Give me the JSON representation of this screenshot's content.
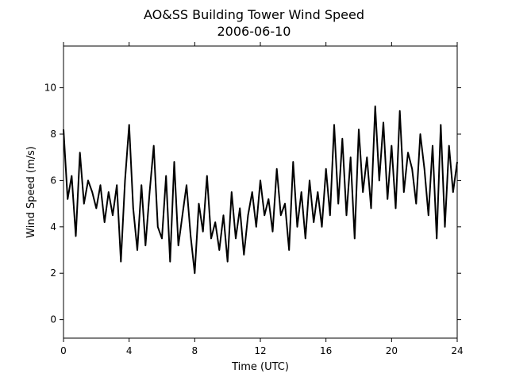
{
  "chart_data": {
    "type": "line",
    "title": "AO&SS Building Tower Wind Speed",
    "subtitle": "2006-06-10",
    "xlabel": "Time (UTC)",
    "ylabel": "Wind Speed (m/s)",
    "xlim": [
      0,
      24
    ],
    "ylim": [
      -0.8,
      11.8
    ],
    "xticks": [
      0,
      4,
      8,
      12,
      16,
      20,
      24
    ],
    "yticks": [
      0,
      2,
      4,
      6,
      8,
      10
    ],
    "grid": false,
    "line_color": "#000000",
    "series": [
      {
        "x": [
          0.0,
          0.25,
          0.5,
          0.75,
          1.0,
          1.25,
          1.5,
          1.75,
          2.0,
          2.25,
          2.5,
          2.75,
          3.0,
          3.25,
          3.5,
          3.75,
          4.0,
          4.25,
          4.5,
          4.75,
          5.0,
          5.25,
          5.5,
          5.75,
          6.0,
          6.25,
          6.5,
          6.75,
          7.0,
          7.25,
          7.5,
          7.75,
          8.0,
          8.25,
          8.5,
          8.75,
          9.0,
          9.25,
          9.5,
          9.75,
          10.0,
          10.25,
          10.5,
          10.75,
          11.0,
          11.25,
          11.5,
          11.75,
          12.0,
          12.25,
          12.5,
          12.75,
          13.0,
          13.25,
          13.5,
          13.75,
          14.0,
          14.25,
          14.5,
          14.75,
          15.0,
          15.25,
          15.5,
          15.75,
          16.0,
          16.25,
          16.5,
          16.75,
          17.0,
          17.25,
          17.5,
          17.75,
          18.0,
          18.25,
          18.5,
          18.75,
          19.0,
          19.25,
          19.5,
          19.75,
          20.0,
          20.25,
          20.5,
          20.75,
          21.0,
          21.25,
          21.5,
          21.75,
          22.0,
          22.25,
          22.5,
          22.75,
          23.0,
          23.25,
          23.5,
          23.75,
          24.0
        ],
        "values": [
          8.2,
          5.2,
          6.2,
          3.6,
          7.2,
          5.0,
          6.0,
          5.5,
          4.8,
          5.8,
          4.2,
          5.5,
          4.5,
          5.8,
          2.5,
          6.0,
          8.4,
          4.8,
          3.0,
          5.8,
          3.2,
          5.5,
          7.5,
          4.0,
          3.5,
          6.2,
          2.5,
          6.8,
          3.2,
          4.5,
          5.8,
          3.6,
          2.0,
          5.0,
          3.8,
          6.2,
          3.5,
          4.2,
          3.0,
          4.5,
          2.5,
          5.5,
          3.5,
          4.8,
          2.8,
          4.5,
          5.5,
          4.0,
          6.0,
          4.5,
          5.2,
          3.8,
          6.5,
          4.5,
          5.0,
          3.0,
          6.8,
          4.0,
          5.5,
          3.5,
          6.0,
          4.2,
          5.5,
          4.0,
          6.5,
          4.5,
          8.4,
          5.0,
          7.8,
          4.5,
          7.0,
          3.5,
          8.2,
          5.5,
          7.0,
          4.8,
          9.2,
          6.0,
          8.5,
          5.2,
          7.5,
          4.8,
          9.0,
          5.5,
          7.2,
          6.5,
          5.0,
          8.0,
          6.5,
          4.5,
          7.5,
          3.5,
          8.4,
          4.0,
          7.5,
          5.5,
          6.8
        ]
      }
    ]
  }
}
